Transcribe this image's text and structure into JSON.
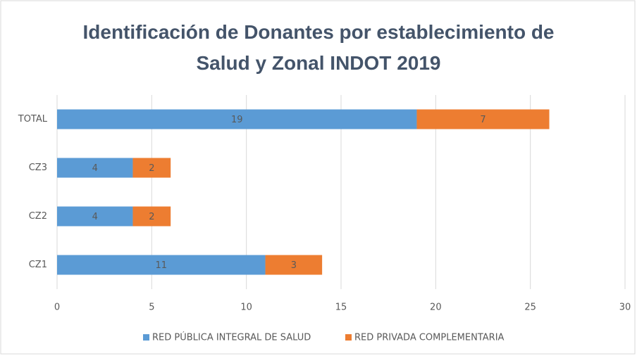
{
  "chart_data": {
    "type": "bar",
    "orientation": "horizontal",
    "stacked": true,
    "title": "Identificación de Donantes por establecimiento de Salud y Zonal INDOT 2019",
    "categories": [
      "CZ1",
      "CZ2",
      "CZ3",
      "TOTAL"
    ],
    "series": [
      {
        "name": "RED PÚBLICA INTEGRAL DE SALUD",
        "color": "#5b9bd5",
        "values": [
          11,
          4,
          4,
          19
        ]
      },
      {
        "name": "RED PRIVADA COMPLEMENTARIA",
        "color": "#ed7d31",
        "values": [
          3,
          2,
          2,
          7
        ]
      }
    ],
    "xlim": [
      0,
      30
    ],
    "xticks": [
      0,
      5,
      10,
      15,
      20,
      25,
      30
    ],
    "grid": true,
    "legend": "bottom"
  }
}
